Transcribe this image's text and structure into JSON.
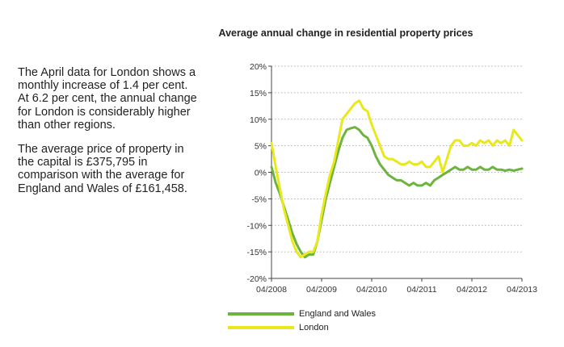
{
  "text": {
    "paragraph1": "The April data for London shows a monthly increase of 1.4 per cent. At 6.2 per cent, the annual change for London is considerably higher than other regions.",
    "paragraph2": "The average price of property in the capital is £375,795 in comparison with the average for England and Wales of £161,458."
  },
  "chart_data": {
    "type": "line",
    "title": "Average annual change in residential property prices",
    "xlabel": "",
    "ylabel": "",
    "x_tick_labels": [
      "04/2008",
      "04/2009",
      "04/2010",
      "04/2011",
      "04/2012",
      "04/2013"
    ],
    "y_tick_labels": [
      "20%",
      "15%",
      "10%",
      "5%",
      "0%",
      "-5%",
      "-10%",
      "-15%",
      "-20%"
    ],
    "ylim": [
      -20,
      20
    ],
    "x_month_range": [
      0,
      60
    ],
    "grid": "dotted horizontal",
    "legend_position": "bottom-left",
    "series": [
      {
        "name": "England and Wales",
        "color": "#6cb33f",
        "x": [
          0,
          1,
          2,
          3,
          4,
          5,
          6,
          7,
          8,
          9,
          10,
          11,
          12,
          13,
          14,
          15,
          16,
          17,
          18,
          19,
          20,
          21,
          22,
          23,
          24,
          25,
          26,
          27,
          28,
          29,
          30,
          31,
          32,
          33,
          34,
          35,
          36,
          37,
          38,
          39,
          40,
          41,
          42,
          43,
          44,
          45,
          46,
          47,
          48,
          49,
          50,
          51,
          52,
          53,
          54,
          55,
          56,
          57,
          58,
          59,
          60
        ],
        "values": [
          1,
          -2,
          -4,
          -6.5,
          -9,
          -11.5,
          -13.5,
          -15,
          -16,
          -15.5,
          -15.5,
          -13,
          -9,
          -5,
          -2,
          1,
          4,
          6.5,
          8,
          8.3,
          8.5,
          8,
          7,
          6.5,
          5,
          3,
          1.5,
          0.5,
          -0.5,
          -1,
          -1.5,
          -1.5,
          -2,
          -2.5,
          -2,
          -2.5,
          -2.5,
          -2,
          -2.5,
          -1.5,
          -1,
          -0.5,
          0,
          0.5,
          1,
          0.5,
          0.5,
          1,
          0.5,
          0.5,
          1,
          0.5,
          0.5,
          1,
          0.5,
          0.5,
          0.3,
          0.5,
          0.3,
          0.5,
          0.7
        ]
      },
      {
        "name": "London",
        "color": "#e8e81c",
        "x": [
          0,
          1,
          2,
          3,
          4,
          5,
          6,
          7,
          8,
          9,
          10,
          11,
          12,
          13,
          14,
          15,
          16,
          17,
          18,
          19,
          20,
          21,
          22,
          23,
          24,
          25,
          26,
          27,
          28,
          29,
          30,
          31,
          32,
          33,
          34,
          35,
          36,
          37,
          38,
          39,
          40,
          41,
          42,
          43,
          44,
          45,
          46,
          47,
          48,
          49,
          50,
          51,
          52,
          53,
          54,
          55,
          56,
          57,
          58,
          59,
          60
        ],
        "values": [
          5.5,
          1,
          -3,
          -7,
          -10,
          -13,
          -15,
          -16,
          -15.5,
          -15,
          -15,
          -13,
          -8,
          -4,
          -0.5,
          2,
          6,
          10,
          11,
          12,
          13,
          13.5,
          12,
          11.5,
          9,
          7,
          5,
          3,
          2.5,
          2.5,
          2,
          1.5,
          1.5,
          2,
          1.5,
          1.5,
          2,
          1,
          1,
          2,
          3,
          0,
          2.5,
          5,
          6,
          6,
          5,
          5,
          5.5,
          5,
          6,
          5.5,
          6,
          5,
          6,
          5.5,
          6,
          5,
          8,
          7,
          6
        ]
      }
    ]
  }
}
